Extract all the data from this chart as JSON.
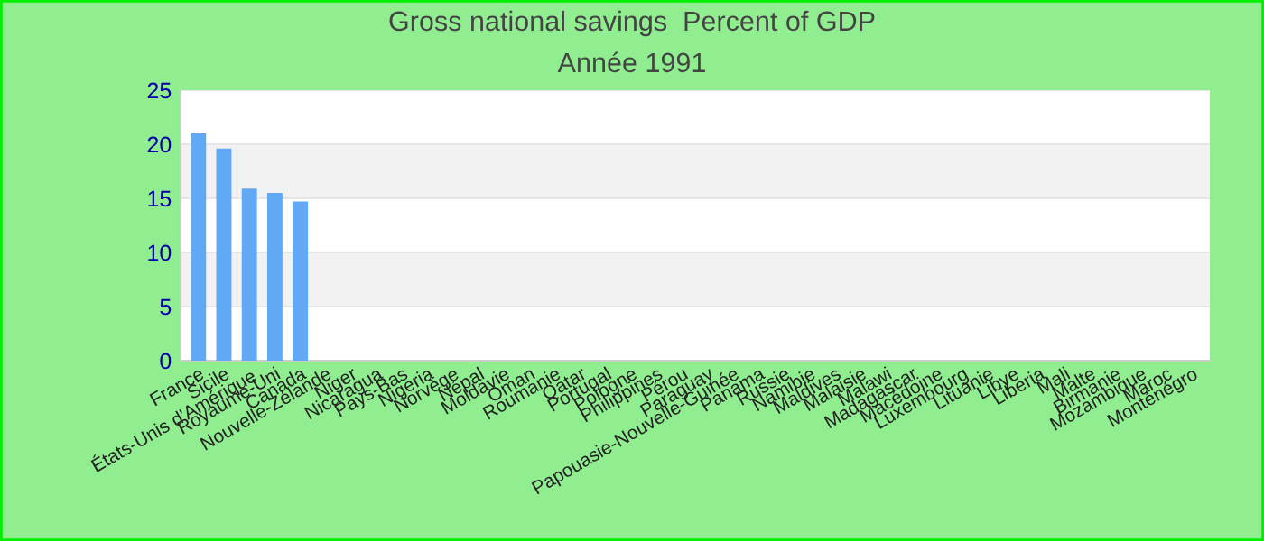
{
  "chart_data": {
    "type": "bar",
    "title": "Gross national savings  Percent of GDP",
    "subtitle": "Année 1991",
    "categories": [
      "France",
      "Sicile",
      "États-Unis d'Amérique",
      "Royaume-Uni",
      "Canada",
      "Nouvelle-Zélande",
      "Niger",
      "Nicaragua",
      "Pays-Bas",
      "Nigeria",
      "Norvège",
      "Népal",
      "Moldavie",
      "Oman",
      "Roumanie",
      "Qatar",
      "Portugal",
      "Pologne",
      "Philippines",
      "Pérou",
      "Paraguay",
      "Papouasie-Nouvelle-Guinée",
      "Panama",
      "Russie",
      "Namibie",
      "Maldives",
      "Malaisie",
      "Malawi",
      "Madagascar",
      "Macédoine",
      "Luxembourg",
      "Lituanie",
      "Libye",
      "Liberia",
      "Mali",
      "Malte",
      "Birmanie",
      "Mozambique",
      "Maroc",
      "Monténégro"
    ],
    "values": [
      21,
      19.6,
      15.9,
      15.5,
      14.7,
      null,
      null,
      null,
      null,
      null,
      null,
      null,
      null,
      null,
      null,
      null,
      null,
      null,
      null,
      null,
      null,
      null,
      null,
      null,
      null,
      null,
      null,
      null,
      null,
      null,
      null,
      null,
      null,
      null,
      null,
      null,
      null,
      null,
      null,
      null
    ],
    "color": "#62a9f5",
    "ylim": [
      0,
      25
    ],
    "yticks": [
      0,
      5,
      10,
      15,
      20,
      25
    ],
    "grid": "y",
    "legend": false
  }
}
